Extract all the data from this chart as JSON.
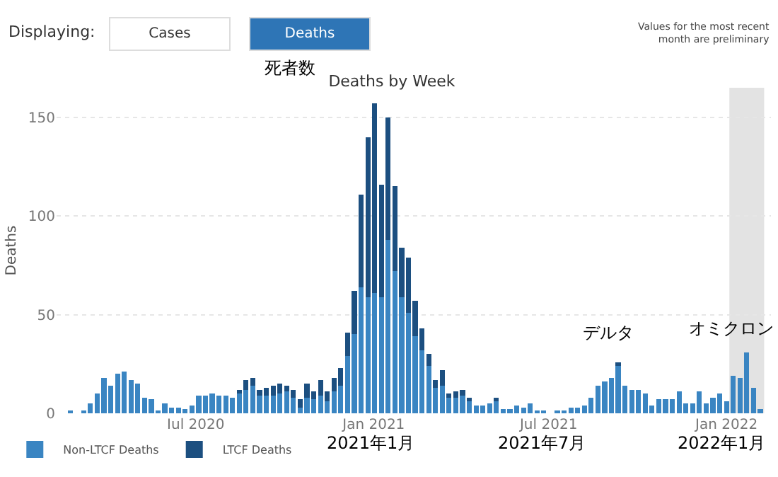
{
  "chart_data": {
    "type": "bar",
    "stacked": true,
    "title": "Deaths by Week",
    "ylabel": "Deaths",
    "x": [
      "2020-02-22",
      "2020-02-29",
      "2020-03-07",
      "2020-03-14",
      "2020-03-21",
      "2020-03-28",
      "2020-04-04",
      "2020-04-11",
      "2020-04-18",
      "2020-04-25",
      "2020-05-02",
      "2020-05-09",
      "2020-05-16",
      "2020-05-23",
      "2020-05-30",
      "2020-06-06",
      "2020-06-13",
      "2020-06-20",
      "2020-06-27",
      "2020-07-04",
      "2020-07-11",
      "2020-07-18",
      "2020-07-25",
      "2020-08-01",
      "2020-08-08",
      "2020-08-15",
      "2020-08-22",
      "2020-08-29",
      "2020-09-05",
      "2020-09-12",
      "2020-09-19",
      "2020-09-26",
      "2020-10-03",
      "2020-10-10",
      "2020-10-17",
      "2020-10-24",
      "2020-10-31",
      "2020-11-07",
      "2020-11-14",
      "2020-11-21",
      "2020-11-28",
      "2020-12-05",
      "2020-12-12",
      "2020-12-19",
      "2020-12-26",
      "2021-01-02",
      "2021-01-09",
      "2021-01-16",
      "2021-01-23",
      "2021-01-30",
      "2021-02-06",
      "2021-02-13",
      "2021-02-20",
      "2021-02-27",
      "2021-03-06",
      "2021-03-13",
      "2021-03-20",
      "2021-03-27",
      "2021-04-03",
      "2021-04-10",
      "2021-04-17",
      "2021-04-24",
      "2021-05-01",
      "2021-05-08",
      "2021-05-15",
      "2021-05-22",
      "2021-05-29",
      "2021-06-05",
      "2021-06-12",
      "2021-06-19",
      "2021-06-26",
      "2021-07-03",
      "2021-07-10",
      "2021-07-17",
      "2021-07-24",
      "2021-07-31",
      "2021-08-07",
      "2021-08-14",
      "2021-08-21",
      "2021-08-28",
      "2021-09-04",
      "2021-09-11",
      "2021-09-18",
      "2021-09-25",
      "2021-10-02",
      "2021-10-09",
      "2021-10-16",
      "2021-10-23",
      "2021-10-30",
      "2021-11-06",
      "2021-11-13",
      "2021-11-20",
      "2021-11-27",
      "2021-12-04",
      "2021-12-11",
      "2021-12-18",
      "2021-12-25",
      "2022-01-01",
      "2022-01-08",
      "2022-01-15",
      "2022-01-22",
      "2022-01-29",
      "2022-02-05"
    ],
    "series": [
      {
        "name": "Non-LTCF Deaths",
        "color": "#3a85c2",
        "values": [
          1,
          0,
          1,
          5,
          10,
          18,
          14,
          20,
          21,
          17,
          15,
          8,
          7,
          1,
          5,
          3,
          3,
          2,
          4,
          9,
          9,
          10,
          9,
          9,
          8,
          10,
          12,
          14,
          9,
          9,
          9,
          10,
          11,
          8,
          3,
          8,
          7,
          9,
          6,
          11,
          14,
          29,
          40,
          64,
          59,
          61,
          59,
          88,
          72,
          59,
          51,
          39,
          32,
          24,
          13,
          14,
          8,
          8,
          9,
          6,
          4,
          4,
          5,
          6,
          2,
          2,
          4,
          3,
          5,
          1,
          1,
          0,
          1,
          1,
          3,
          3,
          4,
          8,
          14,
          16,
          18,
          24,
          14,
          12,
          12,
          10,
          4,
          7,
          7,
          7,
          11,
          5,
          5,
          11,
          5,
          8,
          10,
          6,
          19,
          18,
          31,
          13,
          2
        ]
      },
      {
        "name": "LTCF Deaths",
        "color": "#1c4f80",
        "values": [
          0,
          0,
          0,
          0,
          0,
          0,
          0,
          0,
          0,
          0,
          0,
          0,
          0,
          0,
          0,
          0,
          0,
          0,
          0,
          0,
          0,
          0,
          0,
          0,
          0,
          2,
          5,
          4,
          3,
          4,
          5,
          5,
          3,
          4,
          4,
          7,
          4,
          8,
          5,
          7,
          9,
          12,
          22,
          47,
          81,
          96,
          57,
          62,
          43,
          25,
          28,
          18,
          11,
          6,
          4,
          8,
          2,
          3,
          3,
          2,
          0,
          0,
          0,
          2,
          0,
          0,
          0,
          0,
          0,
          0,
          0,
          0,
          0,
          0,
          0,
          0,
          0,
          0,
          0,
          0,
          0,
          2,
          0,
          0,
          0,
          0,
          0,
          0,
          0,
          0,
          0,
          0,
          0,
          0,
          0,
          0,
          0,
          0,
          0,
          0,
          0,
          0,
          0
        ]
      }
    ],
    "xlim": [
      "2020-02-08",
      "2022-02-16"
    ],
    "xticks": [
      {
        "value": "2020-07-01",
        "label": "Jul 2020"
      },
      {
        "value": "2021-01-01",
        "label": "Jan 2021"
      },
      {
        "value": "2021-07-01",
        "label": "Jul 2021"
      },
      {
        "value": "2022-01-01",
        "label": "Jan 2022"
      }
    ],
    "ylim": [
      0,
      165
    ],
    "yticks": [
      0,
      50,
      100,
      150
    ],
    "grid": "y",
    "legend": "bottom left",
    "bands": [
      {
        "axis": "x",
        "from": "2022-01-04",
        "to": "2022-02-09",
        "color": "#e3e3e3"
      }
    ],
    "annotations": [
      "Displaying:",
      "Cases",
      "Deaths",
      "Values for the most recent\nmonth are preliminary",
      "死者数",
      "2021年1月",
      "2021年7月",
      "2022年1月",
      "デルタ",
      "オミクロン"
    ]
  }
}
